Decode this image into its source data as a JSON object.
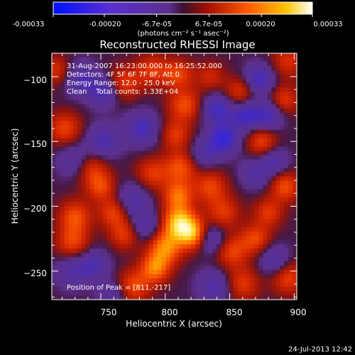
{
  "colorbar": {
    "tick_labels": [
      "-0.00033",
      "-0.00020",
      "-6.7e-05",
      "6.7e-05",
      "0.00020",
      "0.00033"
    ],
    "unit_label": "(photons cm⁻² s⁻¹ asec⁻²)",
    "range": [
      -0.00033,
      0.00033
    ]
  },
  "chart_data": {
    "type": "heatmap",
    "title": "Reconstructed RHESSI Image",
    "xlabel": "Heliocentric X (arcsec)",
    "ylabel": "Heliocentric Y (arcsec)",
    "xlim": [
      712,
      902
    ],
    "ylim": [
      -272,
      -82
    ],
    "x_ticks": [
      750,
      800,
      850,
      900
    ],
    "y_ticks": [
      -100,
      -150,
      -200,
      -250
    ],
    "x_tick_labels": [
      "750",
      "800",
      "850",
      "900"
    ],
    "y_tick_labels": [
      "−100",
      "−150",
      "−200",
      "−250"
    ],
    "annotations": [
      "31-Aug-2007 16:23:00.000 to 16:25:52.000",
      "Detectors: 4F 5F 6F 7F 8F, Att 0",
      "Energy Range: 12.0 - 25.0 keV",
      "Clean    Total counts: 1.33E+04"
    ],
    "peak_label": "Position of Peak = [811,-217]",
    "peak": [
      811,
      -217
    ],
    "blobs": [
      {
        "x": 811,
        "y": -213,
        "v": 1.0,
        "s": 9
      },
      {
        "x": 822,
        "y": -222,
        "v": 0.8,
        "s": 8
      },
      {
        "x": 800,
        "y": -232,
        "v": 0.75,
        "s": 9
      },
      {
        "x": 792,
        "y": -248,
        "v": 0.7,
        "s": 8
      },
      {
        "x": 775,
        "y": -262,
        "v": 0.55,
        "s": 9
      },
      {
        "x": 810,
        "y": -192,
        "v": 0.65,
        "s": 8
      },
      {
        "x": 812,
        "y": -170,
        "v": 0.55,
        "s": 9
      },
      {
        "x": 808,
        "y": -145,
        "v": 0.45,
        "s": 8
      },
      {
        "x": 815,
        "y": -122,
        "v": 0.55,
        "s": 9
      },
      {
        "x": 810,
        "y": -98,
        "v": 0.5,
        "s": 8
      },
      {
        "x": 790,
        "y": -95,
        "v": 0.45,
        "s": 9
      },
      {
        "x": 768,
        "y": -105,
        "v": 0.45,
        "s": 9
      },
      {
        "x": 722,
        "y": -140,
        "v": 0.5,
        "s": 9
      },
      {
        "x": 742,
        "y": -170,
        "v": 0.45,
        "s": 9
      },
      {
        "x": 750,
        "y": -185,
        "v": 0.5,
        "s": 8
      },
      {
        "x": 730,
        "y": -208,
        "v": 0.55,
        "s": 9
      },
      {
        "x": 728,
        "y": -228,
        "v": 0.5,
        "s": 9
      },
      {
        "x": 760,
        "y": -205,
        "v": 0.5,
        "s": 8
      },
      {
        "x": 768,
        "y": -222,
        "v": 0.45,
        "s": 8
      },
      {
        "x": 790,
        "y": -175,
        "v": 0.45,
        "s": 9
      },
      {
        "x": 835,
        "y": -185,
        "v": 0.5,
        "s": 9
      },
      {
        "x": 845,
        "y": -205,
        "v": 0.45,
        "s": 9
      },
      {
        "x": 852,
        "y": -235,
        "v": 0.5,
        "s": 9
      },
      {
        "x": 860,
        "y": -260,
        "v": 0.45,
        "s": 9
      },
      {
        "x": 870,
        "y": -225,
        "v": 0.5,
        "s": 8
      },
      {
        "x": 880,
        "y": -205,
        "v": 0.45,
        "s": 8
      },
      {
        "x": 893,
        "y": -185,
        "v": 0.55,
        "s": 8
      },
      {
        "x": 895,
        "y": -255,
        "v": 0.5,
        "s": 9
      },
      {
        "x": 858,
        "y": -112,
        "v": 0.45,
        "s": 8
      },
      {
        "x": 875,
        "y": -150,
        "v": 0.5,
        "s": 8
      },
      {
        "x": 892,
        "y": -118,
        "v": 0.45,
        "s": 8
      },
      {
        "x": 895,
        "y": -88,
        "v": 0.4,
        "s": 9
      },
      {
        "x": 835,
        "y": -100,
        "v": 0.35,
        "s": 8
      },
      {
        "x": 845,
        "y": -148,
        "v": -0.75,
        "s": 8
      },
      {
        "x": 840,
        "y": -125,
        "v": -0.6,
        "s": 8
      },
      {
        "x": 862,
        "y": -130,
        "v": -0.6,
        "s": 8
      },
      {
        "x": 880,
        "y": -130,
        "v": -0.55,
        "s": 8
      },
      {
        "x": 873,
        "y": -102,
        "v": -0.6,
        "s": 8
      },
      {
        "x": 752,
        "y": -112,
        "v": -0.5,
        "s": 8
      },
      {
        "x": 735,
        "y": -102,
        "v": -0.45,
        "s": 9
      },
      {
        "x": 782,
        "y": -140,
        "v": -0.55,
        "s": 9
      },
      {
        "x": 752,
        "y": -150,
        "v": -0.5,
        "s": 9
      },
      {
        "x": 730,
        "y": -165,
        "v": -0.4,
        "s": 9
      },
      {
        "x": 775,
        "y": -195,
        "v": -0.45,
        "s": 9
      },
      {
        "x": 785,
        "y": -215,
        "v": -0.4,
        "s": 8
      },
      {
        "x": 728,
        "y": -250,
        "v": -0.4,
        "s": 9
      },
      {
        "x": 745,
        "y": -245,
        "v": -0.45,
        "s": 8
      },
      {
        "x": 835,
        "y": -225,
        "v": -0.5,
        "s": 8
      },
      {
        "x": 838,
        "y": -262,
        "v": -0.45,
        "s": 9
      },
      {
        "x": 885,
        "y": -242,
        "v": -0.45,
        "s": 8
      },
      {
        "x": 830,
        "y": -160,
        "v": -0.4,
        "s": 8
      },
      {
        "x": 870,
        "y": -175,
        "v": -0.4,
        "s": 8
      },
      {
        "x": 885,
        "y": -165,
        "v": -0.45,
        "s": 7
      },
      {
        "x": 760,
        "y": -268,
        "v": -0.35,
        "s": 8
      },
      {
        "x": 715,
        "y": -95,
        "v": 0.4,
        "s": 8
      }
    ]
  },
  "footer": {
    "timestamp": "24-Jul-2013 12:42"
  }
}
